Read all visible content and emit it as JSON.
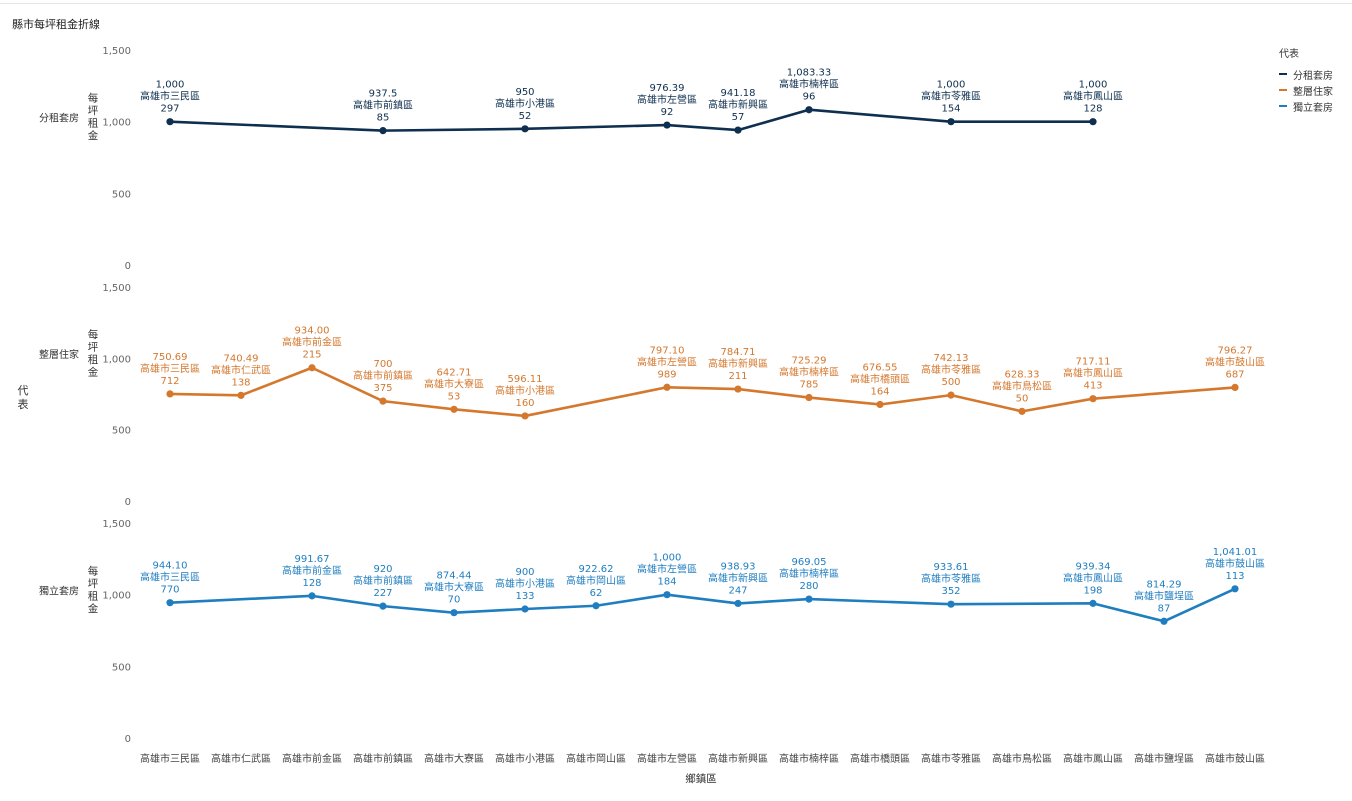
{
  "title": "縣市每坪租金折線",
  "legend": {
    "title": "代表",
    "items": [
      {
        "label": "分租套房",
        "color": "#0e2f4f"
      },
      {
        "label": "整層住家",
        "color": "#d4782e"
      },
      {
        "label": "獨立套房",
        "color": "#1f7ec0"
      }
    ]
  },
  "chart_data": {
    "type": "line",
    "title": "縣市每坪租金折線",
    "xlabel": "鄉鎮區",
    "row_axis_label": "代表",
    "ylabel": "每坪租金",
    "ylim": [
      0,
      1500
    ],
    "yticks": [
      0,
      500,
      "1,000",
      "1,500"
    ],
    "ytick_labels": [
      "0",
      "500",
      "1,000",
      "1,500"
    ],
    "categories": [
      "高雄市三民區",
      "高雄市仁武區",
      "高雄市前金區",
      "高雄市前鎮區",
      "高雄市大寮區",
      "高雄市小港區",
      "高雄市岡山區",
      "高雄市左營區",
      "高雄市新興區",
      "高雄市楠梓區",
      "高雄市橋頭區",
      "高雄市苓雅區",
      "高雄市鳥松區",
      "高雄市鳳山區",
      "高雄市鹽埕區",
      "高雄市鼓山區"
    ],
    "series": [
      {
        "name": "分租套房",
        "color": "#0e2f4f",
        "points": [
          {
            "category": "高雄市三民區",
            "value": 1000,
            "label": "1,000",
            "count": "297"
          },
          {
            "category": "高雄市前鎮區",
            "value": 937.5,
            "label": "937.5",
            "count": "85"
          },
          {
            "category": "高雄市小港區",
            "value": 950,
            "label": "950",
            "count": "52"
          },
          {
            "category": "高雄市左營區",
            "value": 976.39,
            "label": "976.39",
            "count": "92"
          },
          {
            "category": "高雄市新興區",
            "value": 941.18,
            "label": "941.18",
            "count": "57"
          },
          {
            "category": "高雄市楠梓區",
            "value": 1083.33,
            "label": "1,083.33",
            "count": "96"
          },
          {
            "category": "高雄市苓雅區",
            "value": 1000,
            "label": "1,000",
            "count": "154"
          },
          {
            "category": "高雄市鳳山區",
            "value": 1000,
            "label": "1,000",
            "count": "128"
          }
        ]
      },
      {
        "name": "整層住家",
        "color": "#d4782e",
        "points": [
          {
            "category": "高雄市三民區",
            "value": 750.69,
            "label": "750.69",
            "count": "712"
          },
          {
            "category": "高雄市仁武區",
            "value": 740.49,
            "label": "740.49",
            "count": "138"
          },
          {
            "category": "高雄市前金區",
            "value": 934.0,
            "label": "934.00",
            "count": "215"
          },
          {
            "category": "高雄市前鎮區",
            "value": 700,
            "label": "700",
            "count": "375"
          },
          {
            "category": "高雄市大寮區",
            "value": 642.71,
            "label": "642.71",
            "count": "53"
          },
          {
            "category": "高雄市小港區",
            "value": 596.11,
            "label": "596.11",
            "count": "160"
          },
          {
            "category": "高雄市左營區",
            "value": 797.1,
            "label": "797.10",
            "count": "989"
          },
          {
            "category": "高雄市新興區",
            "value": 784.71,
            "label": "784.71",
            "count": "211"
          },
          {
            "category": "高雄市楠梓區",
            "value": 725.29,
            "label": "725.29",
            "count": "785"
          },
          {
            "category": "高雄市橋頭區",
            "value": 676.55,
            "label": "676.55",
            "count": "164"
          },
          {
            "category": "高雄市苓雅區",
            "value": 742.13,
            "label": "742.13",
            "count": "500"
          },
          {
            "category": "高雄市鳥松區",
            "value": 628.33,
            "label": "628.33",
            "count": "50"
          },
          {
            "category": "高雄市鳳山區",
            "value": 717.11,
            "label": "717.11",
            "count": "413"
          },
          {
            "category": "高雄市鼓山區",
            "value": 796.27,
            "label": "796.27",
            "count": "687"
          }
        ]
      },
      {
        "name": "獨立套房",
        "color": "#1f7ec0",
        "points": [
          {
            "category": "高雄市三民區",
            "value": 944.1,
            "label": "944.10",
            "count": "770"
          },
          {
            "category": "高雄市前金區",
            "value": 991.67,
            "label": "991.67",
            "count": "128"
          },
          {
            "category": "高雄市前鎮區",
            "value": 920,
            "label": "920",
            "count": "227"
          },
          {
            "category": "高雄市大寮區",
            "value": 874.44,
            "label": "874.44",
            "count": "70"
          },
          {
            "category": "高雄市小港區",
            "value": 900,
            "label": "900",
            "count": "133"
          },
          {
            "category": "高雄市岡山區",
            "value": 922.62,
            "label": "922.62",
            "count": "62"
          },
          {
            "category": "高雄市左營區",
            "value": 1000,
            "label": "1,000",
            "count": "184"
          },
          {
            "category": "高雄市新興區",
            "value": 938.93,
            "label": "938.93",
            "count": "247"
          },
          {
            "category": "高雄市楠梓區",
            "value": 969.05,
            "label": "969.05",
            "count": "280"
          },
          {
            "category": "高雄市苓雅區",
            "value": 933.61,
            "label": "933.61",
            "count": "352"
          },
          {
            "category": "高雄市鳳山區",
            "value": 939.34,
            "label": "939.34",
            "count": "198"
          },
          {
            "category": "高雄市鹽埕區",
            "value": 814.29,
            "label": "814.29",
            "count": "87"
          },
          {
            "category": "高雄市鼓山區",
            "value": 1041.01,
            "label": "1,041.01",
            "count": "113"
          }
        ]
      }
    ]
  }
}
